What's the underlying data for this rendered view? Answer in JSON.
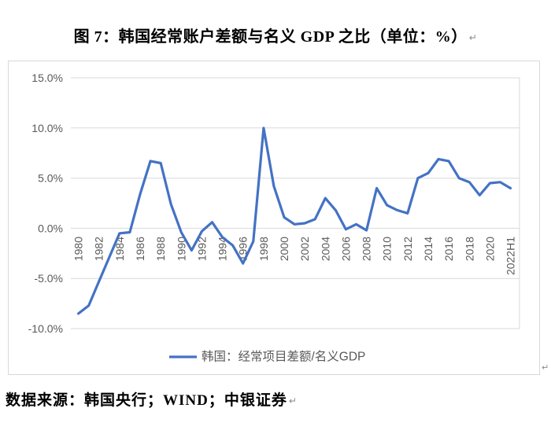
{
  "figure": {
    "title": "图 7：韩国经常账户差额与名义 GDP 之比（单位：%）",
    "title_paragraph_mark": "↵",
    "source": "数据来源：韩国央行；WIND；中银证券",
    "source_paragraph_mark": "↵",
    "object_anchor_mark": "↵"
  },
  "chart_data": {
    "type": "line",
    "title": "韩国经常账户差额与名义GDP之比（单位：%）",
    "legend_position": "bottom",
    "grid": true,
    "x": [
      "1980",
      "1981",
      "1982",
      "1983",
      "1984",
      "1985",
      "1986",
      "1987",
      "1988",
      "1989",
      "1990",
      "1991",
      "1992",
      "1993",
      "1994",
      "1995",
      "1996",
      "1997",
      "1998",
      "1999",
      "2000",
      "2001",
      "2002",
      "2003",
      "2004",
      "2005",
      "2006",
      "2007",
      "2008",
      "2009",
      "2010",
      "2011",
      "2012",
      "2013",
      "2014",
      "2015",
      "2016",
      "2017",
      "2018",
      "2019",
      "2020",
      "2021",
      "2022H1"
    ],
    "series": [
      {
        "name": "韩国：经常项目差额/名义GDP",
        "values": [
          -8.5,
          -7.7,
          -5.3,
          -2.9,
          -0.5,
          -0.4,
          3.4,
          6.7,
          6.5,
          2.4,
          -0.4,
          -2.2,
          -0.3,
          0.6,
          -0.9,
          -1.7,
          -3.5,
          -1.3,
          10.0,
          4.2,
          1.1,
          0.4,
          0.5,
          0.9,
          3.0,
          1.8,
          -0.1,
          0.4,
          -0.2,
          4.0,
          2.3,
          1.8,
          1.5,
          5.0,
          5.5,
          6.9,
          6.7,
          5.0,
          4.6,
          3.3,
          4.5,
          4.6,
          4.0
        ]
      }
    ],
    "xtick_labels": [
      "1980",
      "1982",
      "1984",
      "1986",
      "1988",
      "1990",
      "1992",
      "1994",
      "1996",
      "1998",
      "2000",
      "2002",
      "2004",
      "2006",
      "2008",
      "2010",
      "2012",
      "2014",
      "2016",
      "2018",
      "2020",
      "2022H1"
    ],
    "ytick_labels": [
      "15.0%",
      "10.0%",
      "5.0%",
      "0.0%",
      "-5.0%",
      "-10.0%"
    ],
    "ytick_values": [
      15,
      10,
      5,
      0,
      -5,
      -10
    ],
    "ylim": [
      -10,
      15
    ],
    "colors": {
      "series": "#4472C4",
      "grid": "#d9d9d9",
      "axis_text": "#595959",
      "plot_border": "#d9d9d9"
    }
  }
}
